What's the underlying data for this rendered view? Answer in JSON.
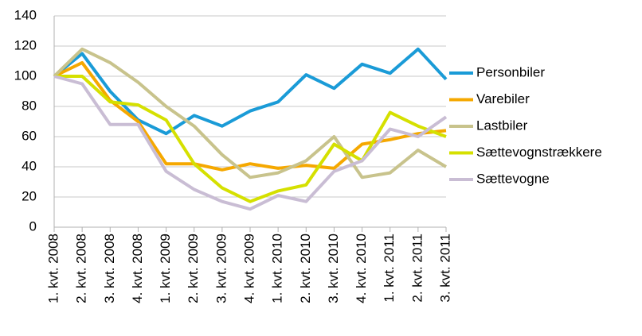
{
  "chart_data": {
    "type": "line",
    "categories": [
      "1. kvt. 2008",
      "2. kvt. 2008",
      "3. kvt. 2008",
      "4. kvt. 2008",
      "1. kvt. 2009",
      "2. kvt. 2009",
      "3. kvt. 2009",
      "4. kvt. 2009",
      "1. kvt. 2010",
      "2. kvt. 2010",
      "3. kvt. 2010",
      "4. kvt. 2010",
      "1. kvt. 2011",
      "2. kvt. 2011",
      "3. kvt. 2011"
    ],
    "series": [
      {
        "name": "Personbiler",
        "color": "#1a9bd7",
        "values": [
          100,
          115,
          90,
          71,
          62,
          74,
          67,
          77,
          83,
          101,
          92,
          108,
          102,
          118,
          98
        ]
      },
      {
        "name": "Varebiler",
        "color": "#f5a800",
        "values": [
          100,
          109,
          84,
          70,
          42,
          42,
          38,
          42,
          39,
          41,
          39,
          55,
          58,
          62,
          64
        ]
      },
      {
        "name": "Lastbiler",
        "color": "#c8c38c",
        "values": [
          100,
          118,
          109,
          96,
          80,
          67,
          48,
          33,
          36,
          44,
          60,
          33,
          36,
          51,
          40
        ]
      },
      {
        "name": "Sættevognstrækkere",
        "color": "#d5e000",
        "values": [
          100,
          100,
          83,
          81,
          71,
          42,
          26,
          17,
          24,
          28,
          55,
          44,
          76,
          67,
          60
        ]
      },
      {
        "name": "Sættevogne",
        "color": "#c9bdd4",
        "values": [
          100,
          95,
          68,
          68,
          37,
          25,
          17,
          12,
          21,
          17,
          37,
          44,
          65,
          60,
          73
        ]
      }
    ],
    "ylim": [
      0,
      140
    ],
    "yticks": [
      0,
      20,
      40,
      60,
      80,
      100,
      120,
      140
    ],
    "grid": true,
    "legend": "right"
  }
}
